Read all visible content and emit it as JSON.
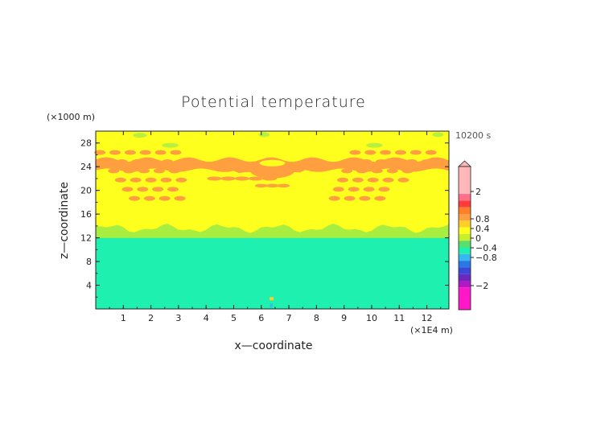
{
  "chart_data": {
    "type": "heatmap",
    "title": "Potential temperature",
    "xlabel": "x—coordinate",
    "ylabel": "z—coordinate",
    "x_unit": "(×1E4 m)",
    "y_unit": "(×1000 m)",
    "time_label": "10200 s",
    "xlim": [
      0,
      12.8
    ],
    "ylim": [
      0,
      30
    ],
    "x_ticks": [
      1,
      2,
      3,
      4,
      5,
      6,
      7,
      8,
      9,
      10,
      11,
      12
    ],
    "y_ticks": [
      4,
      8,
      12,
      16,
      20,
      24,
      28
    ],
    "colorbar": {
      "labels": [
        "2",
        "0.8",
        "0.4",
        "0",
        "−0.4",
        "−0.8",
        "−2"
      ],
      "colors": [
        "#ffb7b7",
        "#ff6f8c",
        "#ff3b3b",
        "#ff7f2a",
        "#ffa040",
        "#ffcf28",
        "#ffff1e",
        "#c8f02a",
        "#58e06a",
        "#1ef0b0",
        "#38b8f0",
        "#2a78e8",
        "#3a48d8",
        "#6a28c0",
        "#b018c8",
        "#ff18c8"
      ]
    },
    "regions": [
      {
        "name": "lower layer",
        "z_range": [
          0,
          12
        ],
        "value_class": "0 to -0.4",
        "color": "#1ef0b0"
      },
      {
        "name": "transition band",
        "z_range": [
          12,
          14
        ],
        "value_class": "0",
        "color": "#a8ee40"
      },
      {
        "name": "upper layer",
        "z_range": [
          14,
          30
        ],
        "value_class": "0 to 0.4",
        "color": "#ffff1e"
      },
      {
        "name": "wave bands",
        "z_range": [
          18,
          27
        ],
        "value_class": "0.4 to 0.8",
        "color": "#ff9f40"
      }
    ],
    "grid": false
  }
}
